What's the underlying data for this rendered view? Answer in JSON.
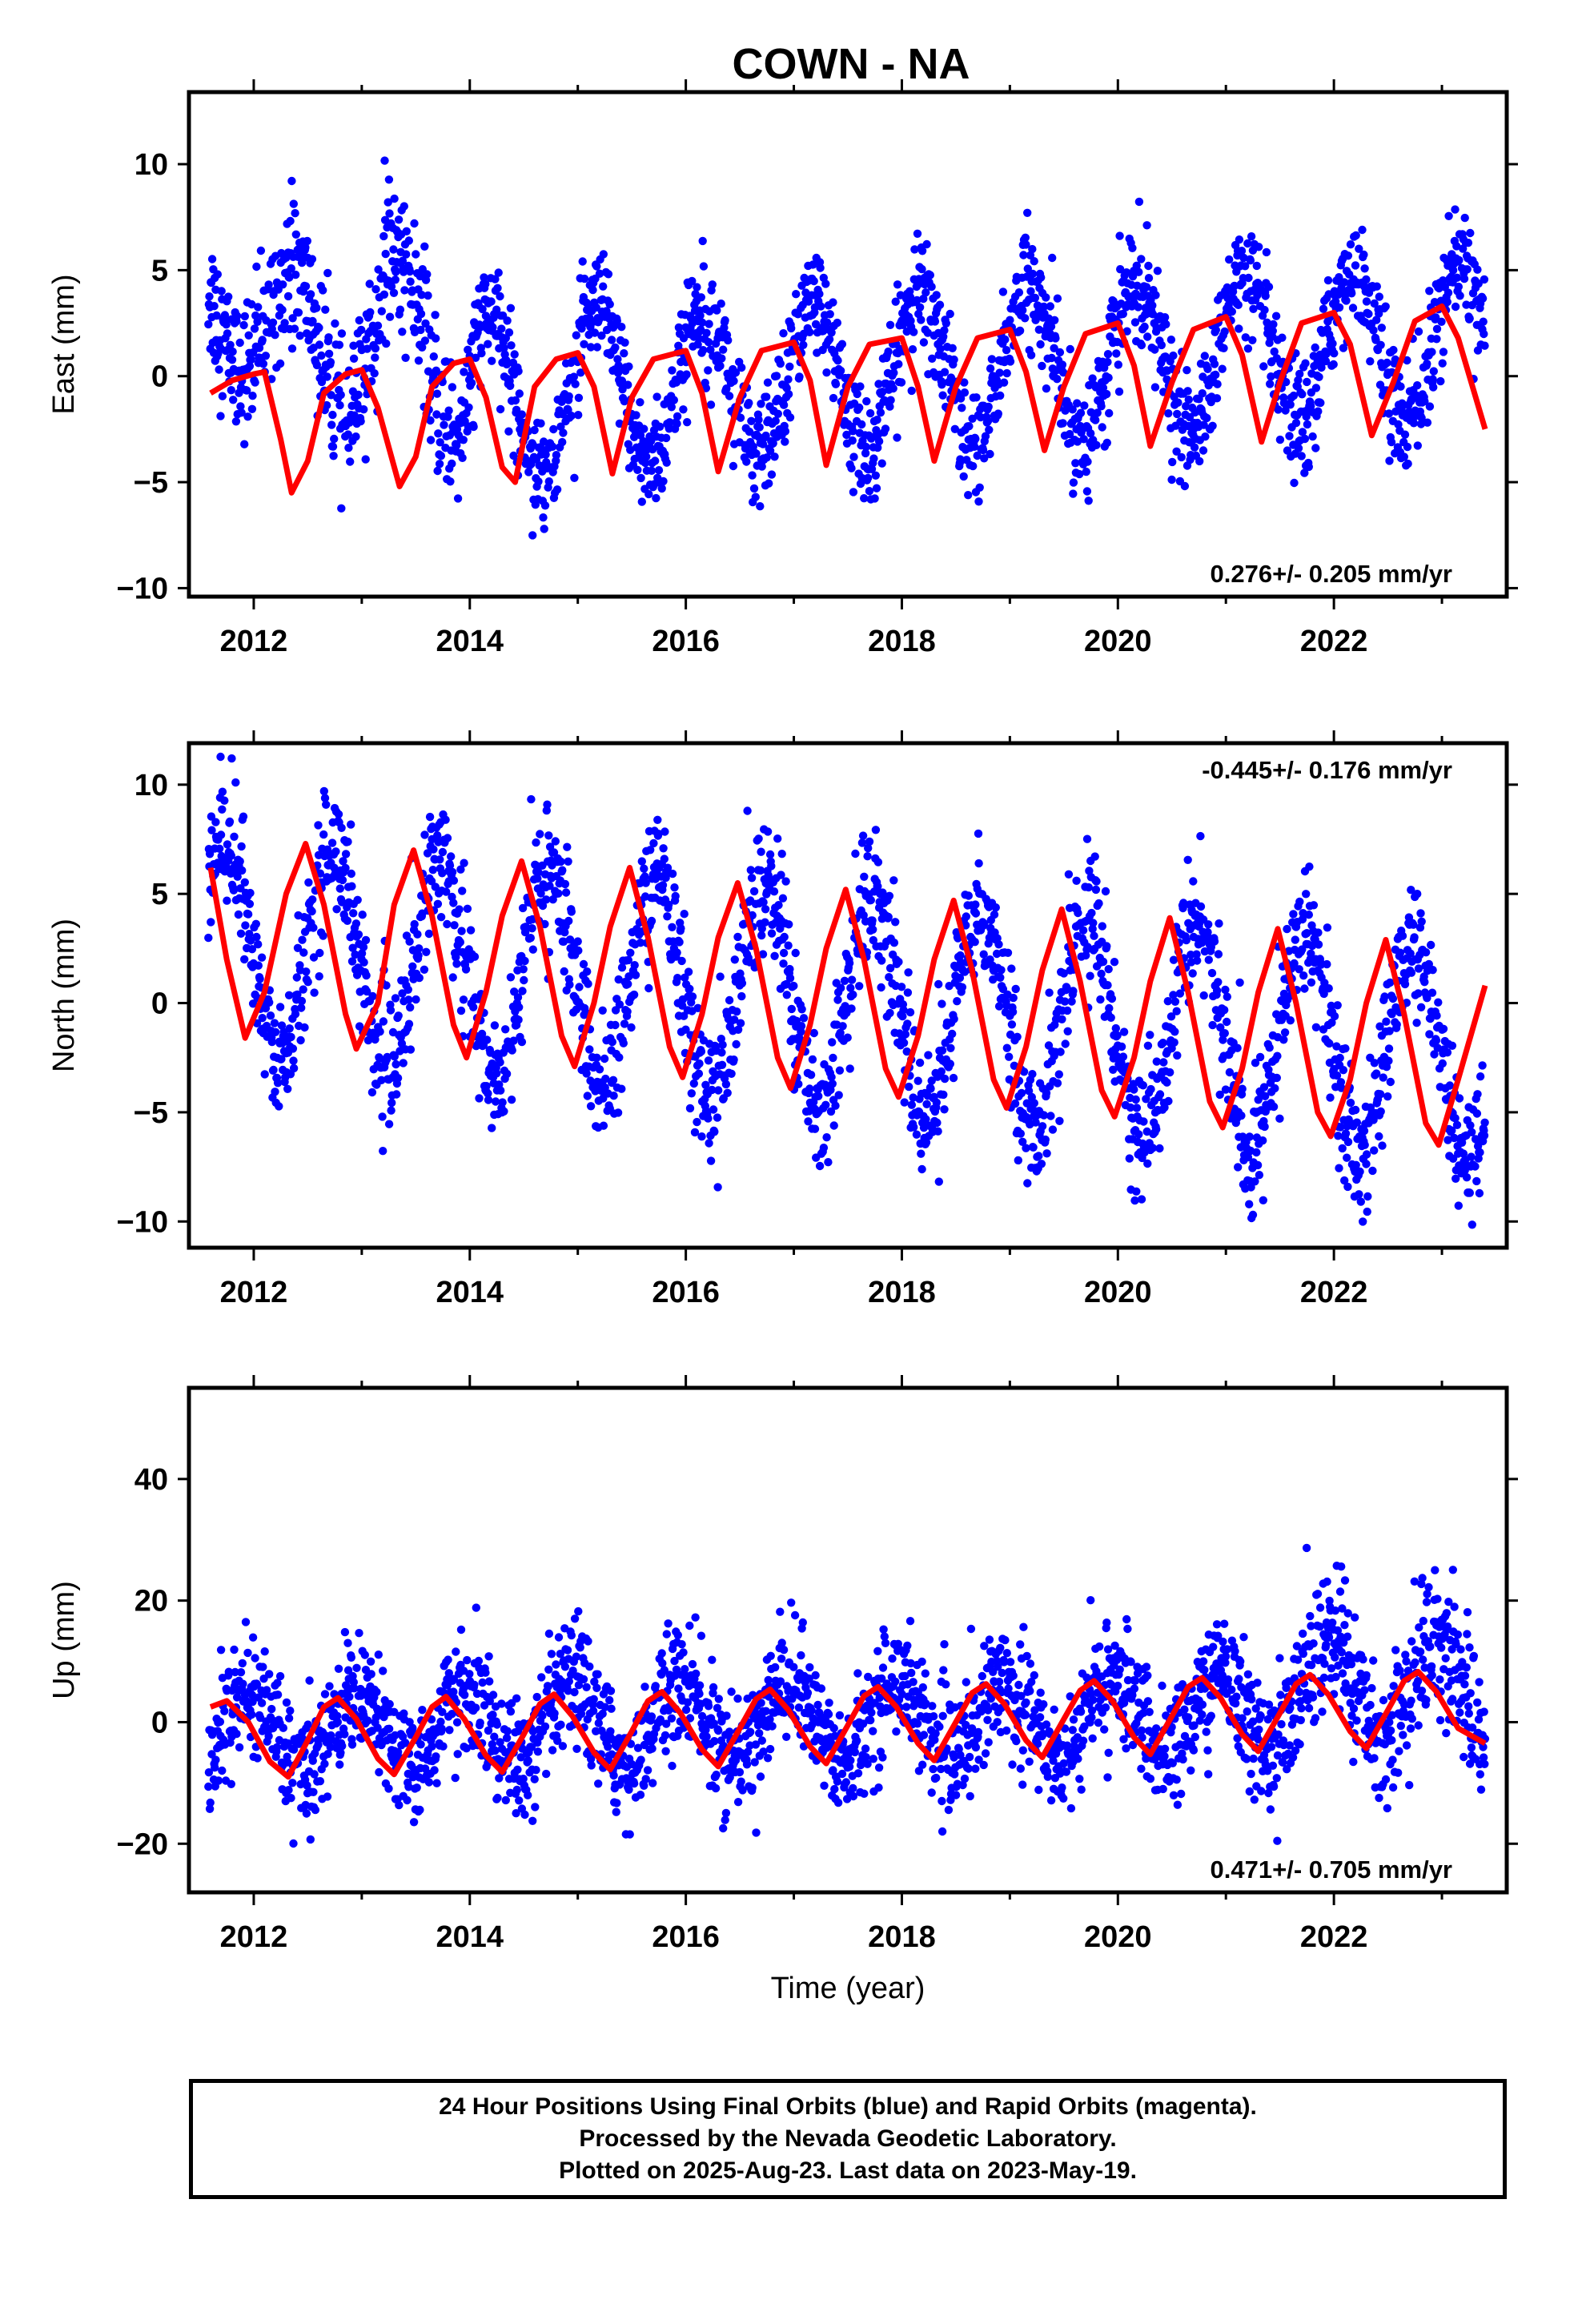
{
  "title": "COWN - NA",
  "colors": {
    "points": "#0000ff",
    "fit": "#ff0000",
    "frame": "#000000"
  },
  "chart_data": [
    {
      "type": "scatter",
      "component": "east",
      "ylabel": "East (mm)",
      "xlabel": "",
      "xlim": [
        2011.4,
        2023.6
      ],
      "ylim": [
        -10.4,
        13.4
      ],
      "xticks": [
        2012,
        2014,
        2016,
        2018,
        2020,
        2022
      ],
      "yticks": [
        -10,
        -5,
        0,
        5,
        10
      ],
      "rate_text": "0.276+/- 0.205 mm/yr",
      "rate_position": "bottom-right",
      "series": [
        {
          "kind": "points",
          "segments": [
            {
              "x0": 2011.58,
              "x1": 2012.32,
              "mean": 3.0,
              "amp": 2.6,
              "phase": 0.15,
              "noise": 1.6
            },
            {
              "x0": 2012.32,
              "x1": 2013.05,
              "mean": 1.6,
              "amp": 3.6,
              "phase": 0.1,
              "noise": 1.7
            },
            {
              "x0": 2013.05,
              "x1": 2014.05,
              "mean": 1.6,
              "amp": 4.2,
              "phase": 0.08,
              "noise": 1.7
            },
            {
              "x0": 2014.05,
              "x1": 2023.4,
              "mean": -0.9,
              "amp": 3.6,
              "phase": 0.92,
              "noise": 1.3,
              "trend": 0.28
            }
          ]
        },
        {
          "kind": "fit",
          "points": [
            [
              2011.6,
              -0.8
            ],
            [
              2011.8,
              -0.2
            ],
            [
              2012.0,
              0.1
            ],
            [
              2012.1,
              0.2
            ],
            [
              2012.25,
              -3.0
            ],
            [
              2012.35,
              -5.5
            ],
            [
              2012.5,
              -4.0
            ],
            [
              2012.65,
              -0.8
            ],
            [
              2012.85,
              0.1
            ],
            [
              2013.0,
              0.3
            ],
            [
              2013.15,
              -1.5
            ],
            [
              2013.35,
              -5.2
            ],
            [
              2013.5,
              -3.8
            ],
            [
              2013.65,
              -0.5
            ],
            [
              2013.85,
              0.6
            ],
            [
              2014.0,
              0.8
            ],
            [
              2014.15,
              -1.0
            ],
            [
              2014.3,
              -4.3
            ],
            [
              2014.42,
              -5.0
            ],
            [
              2014.6,
              -0.5
            ],
            [
              2014.8,
              0.8
            ],
            [
              2015.0,
              1.1
            ],
            [
              2015.15,
              -0.5
            ],
            [
              2015.32,
              -4.6
            ],
            [
              2015.5,
              -1.0
            ],
            [
              2015.7,
              0.8
            ],
            [
              2016.0,
              1.2
            ],
            [
              2016.15,
              -0.8
            ],
            [
              2016.3,
              -4.5
            ],
            [
              2016.5,
              -1.0
            ],
            [
              2016.7,
              1.2
            ],
            [
              2017.0,
              1.6
            ],
            [
              2017.15,
              -0.2
            ],
            [
              2017.3,
              -4.2
            ],
            [
              2017.5,
              -0.5
            ],
            [
              2017.7,
              1.5
            ],
            [
              2018.0,
              1.8
            ],
            [
              2018.15,
              -0.5
            ],
            [
              2018.3,
              -4.0
            ],
            [
              2018.5,
              -0.5
            ],
            [
              2018.7,
              1.8
            ],
            [
              2019.0,
              2.2
            ],
            [
              2019.15,
              0.2
            ],
            [
              2019.32,
              -3.5
            ],
            [
              2019.5,
              -0.5
            ],
            [
              2019.7,
              2.0
            ],
            [
              2020.0,
              2.5
            ],
            [
              2020.15,
              0.5
            ],
            [
              2020.3,
              -3.3
            ],
            [
              2020.5,
              -0.3
            ],
            [
              2020.7,
              2.2
            ],
            [
              2021.0,
              2.8
            ],
            [
              2021.15,
              1.0
            ],
            [
              2021.33,
              -3.1
            ],
            [
              2021.5,
              -0.3
            ],
            [
              2021.7,
              2.5
            ],
            [
              2022.0,
              3.0
            ],
            [
              2022.15,
              1.5
            ],
            [
              2022.35,
              -2.8
            ],
            [
              2022.55,
              -0.3
            ],
            [
              2022.75,
              2.6
            ],
            [
              2023.0,
              3.3
            ],
            [
              2023.15,
              1.8
            ],
            [
              2023.4,
              -2.5
            ]
          ]
        }
      ]
    },
    {
      "type": "scatter",
      "component": "north",
      "ylabel": "North (mm)",
      "xlabel": "",
      "xlim": [
        2011.4,
        2023.6
      ],
      "ylim": [
        -11.2,
        11.9
      ],
      "xticks": [
        2012,
        2014,
        2016,
        2018,
        2020,
        2022
      ],
      "yticks": [
        -10,
        -5,
        0,
        5,
        10
      ],
      "rate_text": "-0.445+/- 0.176 mm/yr",
      "rate_position": "top-right",
      "series": [
        {
          "kind": "points",
          "segments": [
            {
              "x0": 2011.58,
              "x1": 2023.4,
              "mean": 2.7,
              "amp": 4.9,
              "phase": 0.48,
              "noise": 1.5,
              "trend": -0.445,
              "t0": 2011.6
            }
          ]
        },
        {
          "kind": "fit",
          "points": [
            [
              2011.6,
              6.2
            ],
            [
              2011.75,
              2.0
            ],
            [
              2011.92,
              -1.6
            ],
            [
              2012.1,
              0.5
            ],
            [
              2012.3,
              5.0
            ],
            [
              2012.48,
              7.3
            ],
            [
              2012.65,
              4.5
            ],
            [
              2012.85,
              -0.5
            ],
            [
              2012.95,
              -2.1
            ],
            [
              2013.15,
              0.0
            ],
            [
              2013.3,
              4.5
            ],
            [
              2013.48,
              7.0
            ],
            [
              2013.65,
              4.0
            ],
            [
              2013.85,
              -1.0
            ],
            [
              2013.97,
              -2.5
            ],
            [
              2014.15,
              0.5
            ],
            [
              2014.3,
              4.0
            ],
            [
              2014.48,
              6.5
            ],
            [
              2014.65,
              3.5
            ],
            [
              2014.85,
              -1.5
            ],
            [
              2014.97,
              -2.9
            ],
            [
              2015.15,
              0.0
            ],
            [
              2015.3,
              3.5
            ],
            [
              2015.48,
              6.2
            ],
            [
              2015.65,
              3.0
            ],
            [
              2015.85,
              -2.0
            ],
            [
              2015.97,
              -3.4
            ],
            [
              2016.15,
              -0.5
            ],
            [
              2016.3,
              3.0
            ],
            [
              2016.48,
              5.5
            ],
            [
              2016.65,
              2.5
            ],
            [
              2016.85,
              -2.5
            ],
            [
              2016.97,
              -3.9
            ],
            [
              2017.15,
              -1.0
            ],
            [
              2017.3,
              2.5
            ],
            [
              2017.48,
              5.2
            ],
            [
              2017.65,
              2.0
            ],
            [
              2017.85,
              -3.0
            ],
            [
              2017.97,
              -4.3
            ],
            [
              2018.15,
              -1.5
            ],
            [
              2018.3,
              2.0
            ],
            [
              2018.48,
              4.7
            ],
            [
              2018.65,
              1.5
            ],
            [
              2018.85,
              -3.5
            ],
            [
              2018.97,
              -4.8
            ],
            [
              2019.15,
              -2.0
            ],
            [
              2019.3,
              1.5
            ],
            [
              2019.48,
              4.3
            ],
            [
              2019.65,
              1.0
            ],
            [
              2019.85,
              -4.0
            ],
            [
              2019.97,
              -5.2
            ],
            [
              2020.15,
              -2.5
            ],
            [
              2020.3,
              1.0
            ],
            [
              2020.48,
              3.9
            ],
            [
              2020.65,
              0.5
            ],
            [
              2020.85,
              -4.5
            ],
            [
              2020.97,
              -5.7
            ],
            [
              2021.15,
              -3.0
            ],
            [
              2021.3,
              0.5
            ],
            [
              2021.48,
              3.4
            ],
            [
              2021.65,
              0.0
            ],
            [
              2021.85,
              -5.0
            ],
            [
              2021.97,
              -6.1
            ],
            [
              2022.15,
              -3.5
            ],
            [
              2022.3,
              0.0
            ],
            [
              2022.48,
              2.9
            ],
            [
              2022.65,
              -0.5
            ],
            [
              2022.85,
              -5.5
            ],
            [
              2022.97,
              -6.5
            ],
            [
              2023.15,
              -3.5
            ],
            [
              2023.4,
              0.8
            ]
          ]
        }
      ]
    },
    {
      "type": "scatter",
      "component": "up",
      "ylabel": "Up (mm)",
      "xlabel": "Time (year)",
      "xlim": [
        2011.4,
        2023.6
      ],
      "ylim": [
        -28,
        55
      ],
      "xticks": [
        2012,
        2014,
        2016,
        2018,
        2020,
        2022
      ],
      "yticks": [
        -20,
        0,
        20,
        40
      ],
      "rate_text": "0.471+/- 0.705 mm/yr",
      "rate_position": "bottom-right",
      "series": [
        {
          "kind": "points",
          "segments": [
            {
              "x0": 2011.58,
              "x1": 2021.5,
              "mean": -1.5,
              "amp": 6.5,
              "phase": 0.7,
              "noise": 4.8,
              "trend": 0.3,
              "t0": 2011.6
            },
            {
              "x0": 2021.5,
              "x1": 2023.4,
              "mean": 5.5,
              "amp": 8.0,
              "phase": 0.7,
              "noise": 5.5
            }
          ]
        },
        {
          "kind": "fit",
          "points": [
            [
              2011.6,
              2.5
            ],
            [
              2011.75,
              3.5
            ],
            [
              2011.95,
              0.0
            ],
            [
              2012.15,
              -6.5
            ],
            [
              2012.32,
              -9.0
            ],
            [
              2012.5,
              -3.0
            ],
            [
              2012.65,
              2.5
            ],
            [
              2012.78,
              4.0
            ],
            [
              2012.95,
              0.5
            ],
            [
              2013.15,
              -6.0
            ],
            [
              2013.3,
              -8.6
            ],
            [
              2013.5,
              -2.5
            ],
            [
              2013.65,
              2.5
            ],
            [
              2013.78,
              4.2
            ],
            [
              2013.95,
              0.5
            ],
            [
              2014.15,
              -5.5
            ],
            [
              2014.3,
              -8.2
            ],
            [
              2014.5,
              -2.0
            ],
            [
              2014.65,
              3.0
            ],
            [
              2014.78,
              4.6
            ],
            [
              2014.95,
              1.0
            ],
            [
              2015.15,
              -5.0
            ],
            [
              2015.3,
              -7.8
            ],
            [
              2015.5,
              -1.5
            ],
            [
              2015.65,
              3.5
            ],
            [
              2015.78,
              5.0
            ],
            [
              2015.95,
              1.5
            ],
            [
              2016.15,
              -4.5
            ],
            [
              2016.3,
              -7.3
            ],
            [
              2016.5,
              -1.0
            ],
            [
              2016.65,
              3.8
            ],
            [
              2016.78,
              5.4
            ],
            [
              2016.95,
              2.0
            ],
            [
              2017.15,
              -4.0
            ],
            [
              2017.3,
              -6.8
            ],
            [
              2017.5,
              -0.5
            ],
            [
              2017.65,
              4.3
            ],
            [
              2017.78,
              5.8
            ],
            [
              2017.95,
              2.5
            ],
            [
              2018.15,
              -3.5
            ],
            [
              2018.3,
              -6.3
            ],
            [
              2018.5,
              0.0
            ],
            [
              2018.65,
              4.8
            ],
            [
              2018.78,
              6.3
            ],
            [
              2018.95,
              3.0
            ],
            [
              2019.15,
              -3.0
            ],
            [
              2019.3,
              -5.8
            ],
            [
              2019.5,
              0.5
            ],
            [
              2019.65,
              5.2
            ],
            [
              2019.78,
              6.8
            ],
            [
              2019.95,
              3.5
            ],
            [
              2020.15,
              -2.5
            ],
            [
              2020.3,
              -5.3
            ],
            [
              2020.5,
              1.0
            ],
            [
              2020.65,
              5.8
            ],
            [
              2020.78,
              7.3
            ],
            [
              2020.95,
              4.0
            ],
            [
              2021.15,
              -2.0
            ],
            [
              2021.3,
              -4.8
            ],
            [
              2021.5,
              1.5
            ],
            [
              2021.65,
              6.3
            ],
            [
              2021.78,
              7.8
            ],
            [
              2021.95,
              4.5
            ],
            [
              2022.15,
              -1.5
            ],
            [
              2022.3,
              -4.3
            ],
            [
              2022.5,
              2.0
            ],
            [
              2022.65,
              6.8
            ],
            [
              2022.78,
              8.3
            ],
            [
              2022.95,
              5.0
            ],
            [
              2023.15,
              -1.0
            ],
            [
              2023.4,
              -3.5
            ]
          ]
        }
      ]
    }
  ],
  "caption": {
    "lines": [
      "24 Hour Positions Using Final Orbits (blue) and Rapid Orbits (magenta).",
      "Processed by the Nevada Geodetic Laboratory.",
      "Plotted on 2025-Aug-23. Last data on 2023-May-19."
    ]
  }
}
